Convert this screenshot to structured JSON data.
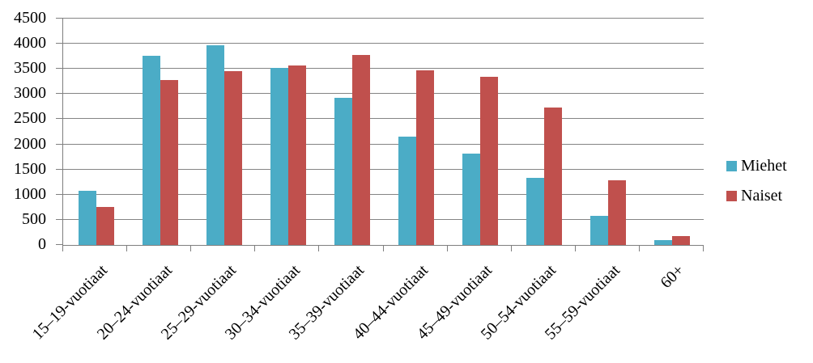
{
  "chart_data": {
    "type": "bar",
    "title": "",
    "xlabel": "",
    "ylabel": "",
    "categories": [
      "15–19-vuotiaat",
      "20–24-vuotiaat",
      "25–29-vuotiaat",
      "30–34-vuotiaat",
      "35–39-vuotiaat",
      "40–44-vuotiaat",
      "45–49-vuotiaat",
      "50–54-vuotiaat",
      "55–59-vuotiaat",
      "60+"
    ],
    "series": [
      {
        "name": "Miehet",
        "color": "#4BACC6",
        "values": [
          1080,
          3760,
          3970,
          3520,
          2920,
          2150,
          1820,
          1330,
          580,
          100
        ]
      },
      {
        "name": "Naiset",
        "color": "#C0504D",
        "values": [
          750,
          3280,
          3460,
          3570,
          3780,
          3470,
          3340,
          2730,
          1290,
          170
        ]
      }
    ],
    "ylim": [
      0,
      4500
    ],
    "yticks": [
      0,
      500,
      1000,
      1500,
      2000,
      2500,
      3000,
      3500,
      4000,
      4500
    ],
    "grid": true,
    "legend_position": "right"
  },
  "colors": {
    "gridline": "#848484",
    "axis": "#7f7f7f",
    "text": "#000000",
    "background": "#ffffff"
  }
}
